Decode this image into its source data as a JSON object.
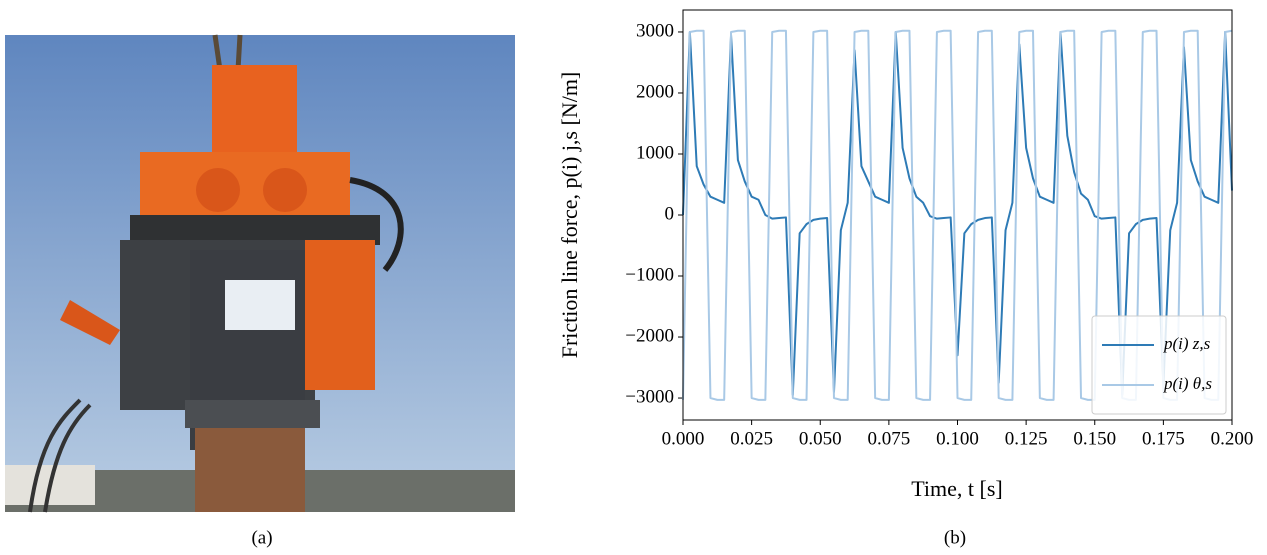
{
  "chart_data": {
    "type": "line",
    "x_label": "Time, t [s]",
    "y_label": "Friction line force, p(i) j,s [N/m]",
    "caption_left": "(a)",
    "caption_right": "(b)",
    "xlim": [
      0,
      0.2
    ],
    "ylim": [
      -3360,
      3360
    ],
    "xticks": [
      {
        "value": 0,
        "label": "0.000"
      },
      {
        "value": 0.025,
        "label": "0.025"
      },
      {
        "value": 0.05,
        "label": "0.050"
      },
      {
        "value": 0.075,
        "label": "0.075"
      },
      {
        "value": 0.1,
        "label": "0.100"
      },
      {
        "value": 0.125,
        "label": "0.125"
      },
      {
        "value": 0.15,
        "label": "0.150"
      },
      {
        "value": 0.175,
        "label": "0.175"
      },
      {
        "value": 0.2,
        "label": "0.200"
      }
    ],
    "yticks": [
      {
        "value": -3000,
        "label": "−3000"
      },
      {
        "value": -2000,
        "label": "−2000"
      },
      {
        "value": -1000,
        "label": "−1000"
      },
      0,
      1000,
      2000,
      3000
    ],
    "grid": false,
    "legend": "lower right",
    "x": [
      0,
      0.0025,
      0.005,
      0.0075,
      0.01,
      0.0125,
      0.015,
      0.0175,
      0.02,
      0.0225,
      0.025,
      0.0275,
      0.03,
      0.0325,
      0.035,
      0.0375,
      0.04,
      0.0425,
      0.045,
      0.0475,
      0.05,
      0.0525,
      0.055,
      0.0575,
      0.06,
      0.0625,
      0.065,
      0.0675,
      0.07,
      0.0725,
      0.075,
      0.0775,
      0.08,
      0.0825,
      0.085,
      0.0875,
      0.09,
      0.0925,
      0.095,
      0.0975,
      0.1,
      0.1025,
      0.105,
      0.1075,
      0.11,
      0.1125,
      0.115,
      0.1175,
      0.12,
      0.1225,
      0.125,
      0.1275,
      0.13,
      0.1325,
      0.135,
      0.1375,
      0.14,
      0.1425,
      0.145,
      0.1475,
      0.15,
      0.1525,
      0.155,
      0.1575,
      0.16,
      0.1625,
      0.165,
      0.1675,
      0.17,
      0.1725,
      0.175,
      0.1775,
      0.18,
      0.1825,
      0.185,
      0.1875,
      0.19,
      0.1925,
      0.195,
      0.1975,
      0.2
    ],
    "series": [
      {
        "name": "p(i) z,s",
        "color": "#2e7bb6",
        "values": [
          0,
          3000,
          800,
          500,
          300,
          250,
          200,
          2950,
          900,
          550,
          300,
          250,
          0,
          -60,
          -50,
          -40,
          -2950,
          -300,
          -150,
          -80,
          -60,
          -50,
          -2900,
          -250,
          200,
          2700,
          800,
          550,
          300,
          250,
          200,
          3000,
          1100,
          600,
          300,
          200,
          -20,
          -60,
          -50,
          -40,
          -2300,
          -300,
          -150,
          -80,
          -50,
          -40,
          -2750,
          -250,
          200,
          2800,
          1100,
          600,
          300,
          250,
          200,
          3000,
          1300,
          700,
          350,
          250,
          -20,
          -60,
          -50,
          -40,
          -2950,
          -300,
          -150,
          -80,
          -60,
          -50,
          -2800,
          -250,
          200,
          2750,
          900,
          550,
          300,
          250,
          200,
          3000,
          400
        ]
      },
      {
        "name": "p(i) θ,s",
        "color": "#a9c9e6",
        "values": [
          -3030,
          3000,
          3020,
          3020,
          -3000,
          -3030,
          -3030,
          3000,
          3020,
          3020,
          -3000,
          -3030,
          -3030,
          3000,
          3020,
          3020,
          -3000,
          -3030,
          -3030,
          3000,
          3020,
          3020,
          -3000,
          -3030,
          -3030,
          3000,
          3020,
          3020,
          -3000,
          -3030,
          -3030,
          3000,
          3020,
          3020,
          -3000,
          -3030,
          -3030,
          3000,
          3020,
          3020,
          -3000,
          -3030,
          -3030,
          3000,
          3020,
          3020,
          -3000,
          -3030,
          -3030,
          3000,
          3020,
          3020,
          -3000,
          -3030,
          -3030,
          3000,
          3020,
          3020,
          -3000,
          -3030,
          -3030,
          3000,
          3020,
          3020,
          -3000,
          -3030,
          -3030,
          3000,
          3020,
          3020,
          -3000,
          -3030,
          -3030,
          3000,
          3020,
          3020,
          -3000,
          -3030,
          -3030,
          3000,
          3020
        ]
      }
    ]
  }
}
